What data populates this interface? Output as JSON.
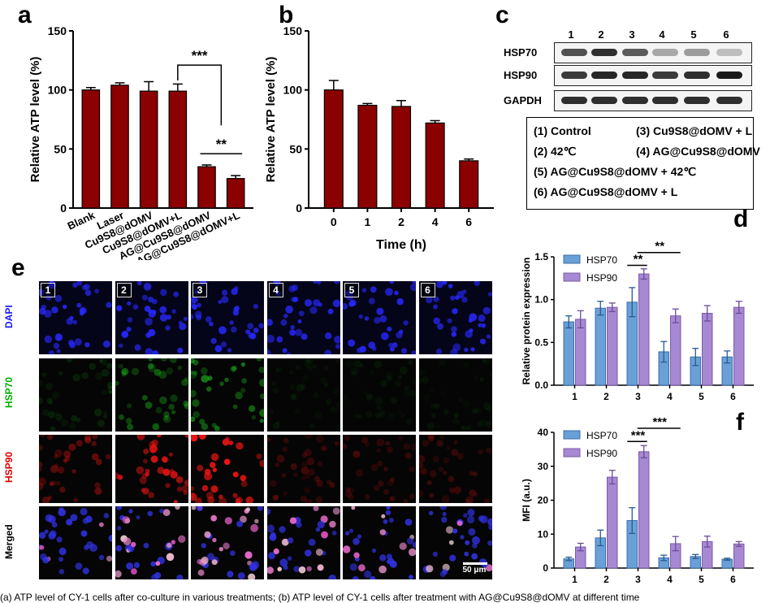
{
  "panels": {
    "a": "a",
    "b": "b",
    "c": "c",
    "d": "d",
    "e": "e",
    "f": "f"
  },
  "colors": {
    "dark_red": "#8b0000",
    "hsp70": "#6aa0d8",
    "hsp90": "#a788d2",
    "dapi": "#1a1aff",
    "hsp70_text": "#00b000",
    "hsp90_text": "#e00000"
  },
  "chart_a": {
    "type": "bar",
    "ylabel": "Relative ATP level (%)",
    "ylim": [
      0,
      150
    ],
    "yticks": [
      0,
      50,
      100,
      150
    ],
    "categories": [
      "Blank",
      "Laser",
      "Cu9S8@dOMV",
      "Cu9S8@dOMV+L",
      "AG@Cu9S8@dOMV",
      "AG@Cu9S8@dOMV+L"
    ],
    "values": [
      100,
      104,
      99,
      99,
      35,
      25
    ],
    "errors": [
      2,
      2,
      8,
      6,
      1.5,
      2.5
    ],
    "sig": [
      "***",
      "**"
    ]
  },
  "chart_b": {
    "type": "bar",
    "ylabel": "Relative ATP level (%)",
    "xlabel": "Time (h)",
    "ylim": [
      0,
      150
    ],
    "yticks": [
      0,
      50,
      100,
      150
    ],
    "categories": [
      "0",
      "1",
      "2",
      "4",
      "6"
    ],
    "values": [
      100,
      87,
      86,
      72,
      40
    ],
    "errors": [
      8,
      1.5,
      5,
      2,
      1.5
    ]
  },
  "blot": {
    "lanes": [
      "1",
      "2",
      "3",
      "4",
      "5",
      "6"
    ],
    "rows": [
      "HSP70",
      "HSP90",
      "GAPDH"
    ],
    "legend": [
      "(1) Control",
      "(2) 42℃",
      "(3) Cu9S8@dOMV + L",
      "(4) AG@Cu9S8@dOMV",
      "(5) AG@Cu9S8@dOMV + 42℃",
      "(6) AG@Cu9S8@dOMV + L"
    ]
  },
  "chart_d": {
    "type": "bar",
    "ylabel": "Relative protein expression",
    "ylim": [
      0,
      1.5
    ],
    "yticks": [
      "0.0",
      "0.5",
      "1.0",
      "1.5"
    ],
    "categories": [
      "1",
      "2",
      "3",
      "4",
      "5",
      "6"
    ],
    "series": [
      {
        "name": "HSP70",
        "values": [
          0.74,
          0.9,
          0.97,
          0.39,
          0.33,
          0.33
        ],
        "errors": [
          0.07,
          0.08,
          0.17,
          0.12,
          0.1,
          0.07
        ]
      },
      {
        "name": "HSP90",
        "values": [
          0.77,
          0.91,
          1.3,
          0.81,
          0.84,
          0.91
        ],
        "errors": [
          0.1,
          0.05,
          0.06,
          0.08,
          0.09,
          0.07
        ]
      }
    ],
    "sig": [
      "**",
      "**"
    ]
  },
  "chart_f": {
    "type": "bar",
    "ylabel": "MFI (a.u.)",
    "ylim": [
      0,
      40
    ],
    "yticks": [
      "0",
      "10",
      "20",
      "30",
      "40"
    ],
    "categories": [
      "1",
      "2",
      "3",
      "4",
      "5",
      "6"
    ],
    "series": [
      {
        "name": "HSP70",
        "values": [
          2.7,
          8.9,
          14,
          3,
          3.4,
          2.6
        ],
        "errors": [
          0.5,
          2.3,
          3.8,
          0.8,
          0.6,
          0.3
        ]
      },
      {
        "name": "HSP90",
        "values": [
          6.2,
          26.8,
          34.3,
          7.2,
          7.8,
          7.1
        ],
        "errors": [
          1.1,
          2,
          1.8,
          2.1,
          1.6,
          0.7
        ]
      }
    ],
    "sig": [
      "***",
      "***"
    ]
  },
  "micro": {
    "rows": [
      "DAPI",
      "HSP70",
      "HSP90",
      "Merged"
    ],
    "cols": [
      "1",
      "2",
      "3",
      "4",
      "5",
      "6"
    ],
    "scalebar": "50 μm"
  },
  "caption": "(a) ATP level of CY-1 cells after co-culture in various treatments; (b) ATP level of CY-1 cells after treatment with AG@Cu9S8@dOMV at different time"
}
